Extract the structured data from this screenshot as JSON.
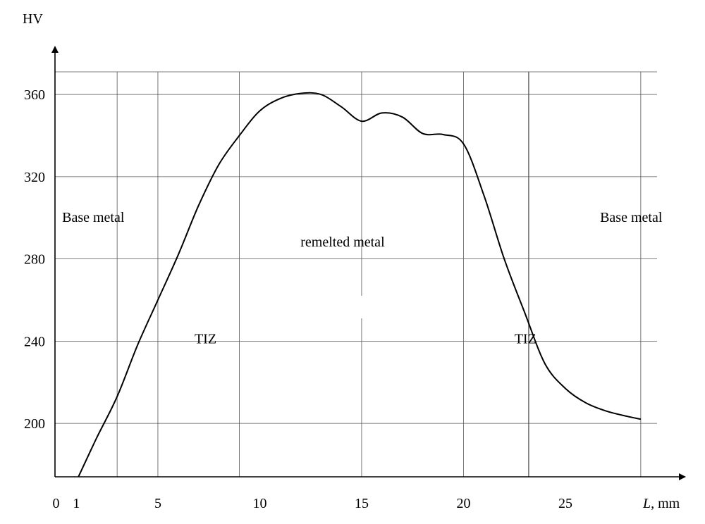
{
  "chart_data": {
    "type": "line",
    "xlabel_italic": "L",
    "xlabel_unit": ", mm",
    "ylabel": "HV",
    "x_ticks": [
      0,
      1,
      5,
      10,
      15,
      20,
      25
    ],
    "y_ticks": [
      200,
      240,
      280,
      320,
      360
    ],
    "xlim": [
      -0.05,
      29.5
    ],
    "ylim": [
      174,
      371
    ],
    "grid": true,
    "vertical_grid_x": [
      3,
      5,
      9,
      15,
      20,
      23.2,
      28.7
    ],
    "region_labels": [
      {
        "id": "base-metal-left",
        "text": "Base metal",
        "x": 0.3,
        "y": 298
      },
      {
        "id": "remelted-metal",
        "text": "remelted metal",
        "x": 12.0,
        "y": 286
      },
      {
        "id": "tiz-left",
        "text": "TIZ",
        "x": 6.8,
        "y": 239
      },
      {
        "id": "tiz-right",
        "text": "TIZ",
        "x": 22.5,
        "y": 239
      },
      {
        "id": "base-metal-right",
        "text": "Base metal",
        "x": 26.7,
        "y": 298
      }
    ],
    "series": [
      {
        "x": [
          1.1,
          2,
          3,
          4,
          5,
          6,
          7,
          8,
          9,
          10,
          11,
          12,
          13,
          14,
          15,
          16,
          17,
          18,
          19,
          20,
          21,
          22,
          23,
          24,
          25,
          26,
          27,
          28,
          28.7
        ],
        "values": [
          174,
          193,
          213,
          238,
          260,
          282,
          306,
          326,
          340,
          352,
          358,
          360.5,
          360,
          354,
          347,
          351,
          349,
          341,
          340.5,
          336,
          311,
          280,
          254,
          229,
          217,
          210,
          206,
          203.5,
          202
        ]
      }
    ]
  }
}
